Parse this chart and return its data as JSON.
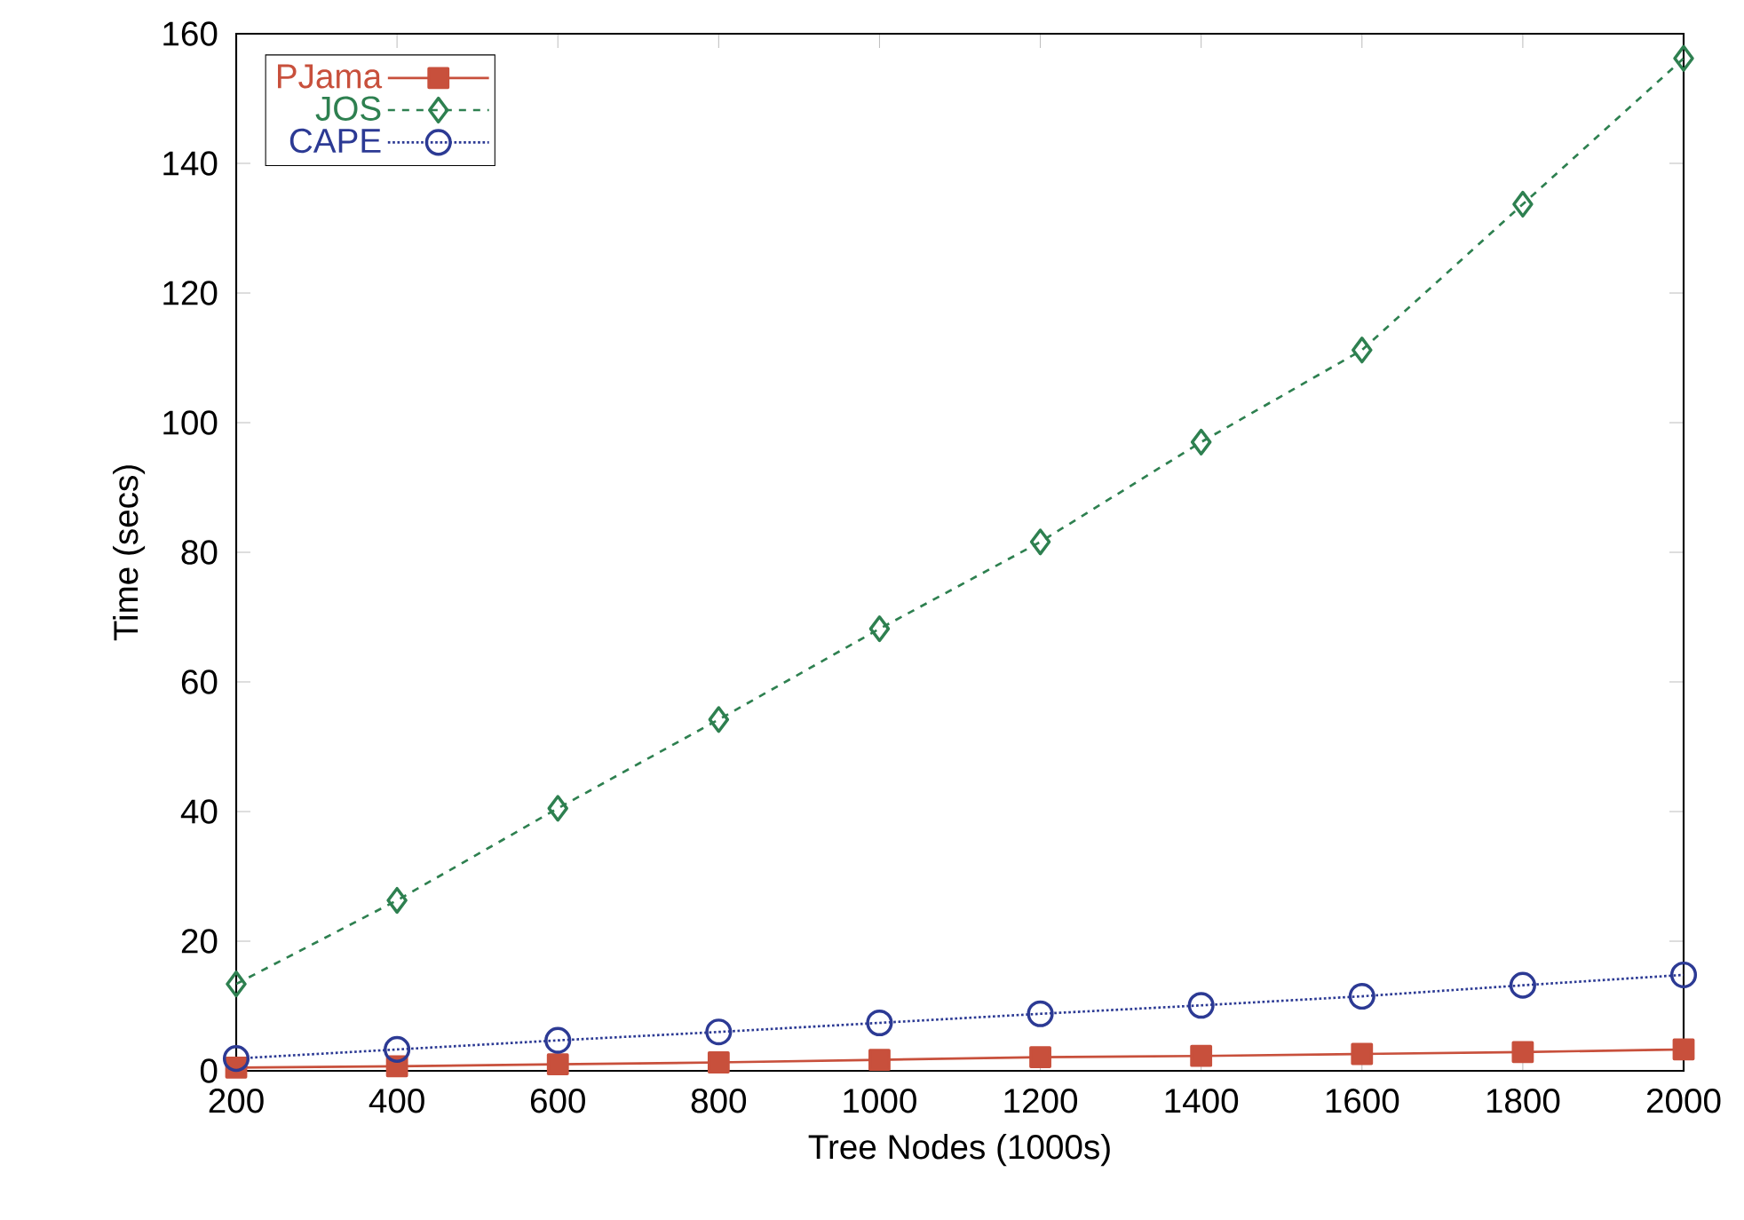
{
  "chart_data": {
    "type": "line",
    "xlabel": "Tree Nodes (1000s)",
    "ylabel": "Time (secs)",
    "x": [
      200,
      400,
      600,
      800,
      1000,
      1200,
      1400,
      1600,
      1800,
      2000
    ],
    "xlim": [
      200,
      2000
    ],
    "xticks": [
      200,
      400,
      600,
      800,
      1000,
      1200,
      1400,
      1600,
      1800,
      2000
    ],
    "ylim": [
      0,
      160
    ],
    "yticks": [
      0,
      20,
      40,
      60,
      80,
      100,
      120,
      140,
      160
    ],
    "legend": "top left",
    "series": [
      {
        "name": "PJama",
        "color": "#c8503c",
        "marker": "square",
        "line_style": "solid",
        "values": [
          0.5,
          0.7,
          1.0,
          1.3,
          1.7,
          2.1,
          2.3,
          2.6,
          2.9,
          3.3
        ]
      },
      {
        "name": "JOS",
        "color": "#2e8050",
        "marker": "diamond",
        "line_style": "dashed",
        "values": [
          13.4,
          26.3,
          40.5,
          54.2,
          68.2,
          81.6,
          97,
          111.2,
          133.7,
          156.2
        ]
      },
      {
        "name": "CAPE",
        "color": "#2c3a94",
        "marker": "circle",
        "line_style": "dotted",
        "values": [
          1.9,
          3.3,
          4.7,
          6,
          7.4,
          8.8,
          10.1,
          11.5,
          13.2,
          14.8
        ]
      }
    ]
  }
}
